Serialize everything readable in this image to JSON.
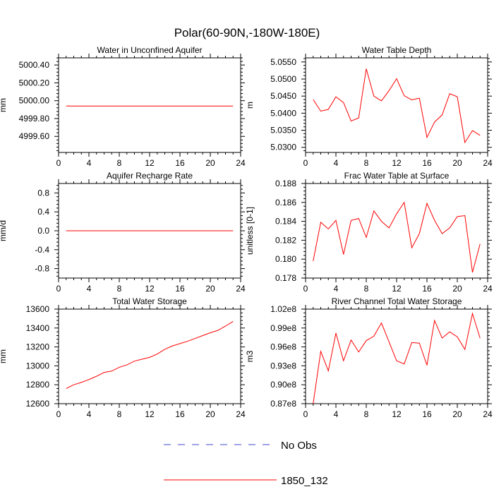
{
  "figure": {
    "title": "Polar(60-90N,-180W-180E)",
    "background": "#ffffff"
  },
  "legend": {
    "placement": "bottom-center",
    "entries": [
      {
        "label": "No Obs",
        "color": "#3f48cc",
        "dash": "dashed"
      },
      {
        "label": "1850_132",
        "color": "#ff0000",
        "dash": "solid"
      }
    ]
  },
  "chart_data": [
    {
      "type": "line",
      "title": "Water in Unconfined Aquifer",
      "xlabel": "",
      "ylabel": "mm",
      "xlim": [
        0,
        24
      ],
      "ylim": [
        4999.42,
        5000.48
      ],
      "xticks": [
        0,
        4,
        8,
        12,
        16,
        20,
        24
      ],
      "xtick_labels": [
        "0",
        "4",
        "8",
        "12",
        "16",
        "20",
        "24"
      ],
      "yticks": [
        4999.6,
        4999.8,
        5000.0,
        5000.2,
        5000.4
      ],
      "ytick_labels": [
        "4999.60",
        "4999.80",
        "5000.00",
        "5000.20",
        "5000.40"
      ],
      "grid": false,
      "series": [
        {
          "name": "1850_132",
          "color": "#ff0000",
          "x": [
            1,
            2,
            3,
            4,
            5,
            6,
            7,
            8,
            9,
            10,
            11,
            12,
            13,
            14,
            15,
            16,
            17,
            18,
            19,
            20,
            21,
            22,
            23
          ],
          "y": [
            4999.94,
            4999.94,
            4999.94,
            4999.94,
            4999.94,
            4999.94,
            4999.94,
            4999.94,
            4999.94,
            4999.94,
            4999.94,
            4999.94,
            4999.94,
            4999.94,
            4999.94,
            4999.94,
            4999.94,
            4999.94,
            4999.94,
            4999.94,
            4999.94,
            4999.94,
            4999.94
          ]
        }
      ]
    },
    {
      "type": "line",
      "title": "Water Table Depth",
      "xlabel": "",
      "ylabel": "m",
      "xlim": [
        0,
        24
      ],
      "ylim": [
        5.0285,
        5.0562
      ],
      "xticks": [
        0,
        4,
        8,
        12,
        16,
        20,
        24
      ],
      "xtick_labels": [
        "0",
        "4",
        "8",
        "12",
        "16",
        "20",
        "24"
      ],
      "yticks": [
        5.03,
        5.035,
        5.04,
        5.045,
        5.05,
        5.055
      ],
      "ytick_labels": [
        "5.0300",
        "5.0350",
        "5.0400",
        "5.0450",
        "5.0500",
        "5.0550"
      ],
      "grid": false,
      "series": [
        {
          "name": "1850_132",
          "color": "#ff0000",
          "x": [
            1,
            2,
            3,
            4,
            5,
            6,
            7,
            8,
            9,
            10,
            11,
            12,
            13,
            14,
            15,
            16,
            17,
            18,
            19,
            20,
            21,
            22,
            23
          ],
          "y": [
            5.044,
            5.0406,
            5.0411,
            5.0448,
            5.0431,
            5.0377,
            5.0386,
            5.053,
            5.045,
            5.0436,
            5.0466,
            5.0501,
            5.0451,
            5.0439,
            5.0444,
            5.0329,
            5.0374,
            5.0395,
            5.0457,
            5.0448,
            5.0314,
            5.0349,
            5.0335
          ]
        }
      ]
    },
    {
      "type": "line",
      "title": "Aquifer Recharge Rate",
      "xlabel": "",
      "ylabel": "mm/d",
      "xlim": [
        0,
        24
      ],
      "ylim": [
        -1.0,
        1.0
      ],
      "xticks": [
        0,
        4,
        8,
        12,
        16,
        20,
        24
      ],
      "xtick_labels": [
        "0",
        "4",
        "8",
        "12",
        "16",
        "20",
        "24"
      ],
      "yticks": [
        -0.8,
        -0.4,
        0.0,
        0.4,
        0.8
      ],
      "ytick_labels": [
        "-0.8",
        "-0.4",
        "0.0",
        "0.4",
        "0.8"
      ],
      "grid": false,
      "series": [
        {
          "name": "1850_132",
          "color": "#ff0000",
          "x": [
            1,
            2,
            3,
            4,
            5,
            6,
            7,
            8,
            9,
            10,
            11,
            12,
            13,
            14,
            15,
            16,
            17,
            18,
            19,
            20,
            21,
            22,
            23
          ],
          "y": [
            0,
            0,
            0,
            0,
            0,
            0,
            0,
            0,
            0,
            0,
            0,
            0,
            0,
            0,
            0,
            0,
            0,
            0,
            0,
            0,
            0,
            0,
            0
          ]
        }
      ]
    },
    {
      "type": "line",
      "title": "Frac Water Table at Surface",
      "xlabel": "",
      "ylabel": "unitless [0-1]",
      "xlim": [
        0,
        24
      ],
      "ylim": [
        0.178,
        0.188
      ],
      "xticks": [
        0,
        4,
        8,
        12,
        16,
        20,
        24
      ],
      "xtick_labels": [
        "0",
        "4",
        "8",
        "12",
        "16",
        "20",
        "24"
      ],
      "yticks": [
        0.178,
        0.18,
        0.182,
        0.184,
        0.186,
        0.188
      ],
      "ytick_labels": [
        "0.178",
        "0.180",
        "0.182",
        "0.184",
        "0.186",
        "0.188"
      ],
      "grid": false,
      "series": [
        {
          "name": "1850_132",
          "color": "#ff0000",
          "x": [
            1,
            2,
            3,
            4,
            5,
            6,
            7,
            8,
            9,
            10,
            11,
            12,
            13,
            14,
            15,
            16,
            17,
            18,
            19,
            20,
            21,
            22,
            23
          ],
          "y": [
            0.1798,
            0.1839,
            0.1832,
            0.1841,
            0.1805,
            0.1841,
            0.1843,
            0.1823,
            0.1851,
            0.184,
            0.1833,
            0.1848,
            0.186,
            0.1812,
            0.1827,
            0.1859,
            0.1841,
            0.1827,
            0.1833,
            0.1845,
            0.1846,
            0.1786,
            0.1816
          ]
        }
      ]
    },
    {
      "type": "line",
      "title": "Total Water Storage",
      "xlabel": "",
      "ylabel": "mm",
      "xlim": [
        0,
        24
      ],
      "ylim": [
        12600,
        13600
      ],
      "xticks": [
        0,
        4,
        8,
        12,
        16,
        20,
        24
      ],
      "xtick_labels": [
        "0",
        "4",
        "8",
        "12",
        "16",
        "20",
        "24"
      ],
      "yticks": [
        12600,
        12800,
        13000,
        13200,
        13400,
        13600
      ],
      "ytick_labels": [
        "12600",
        "12800",
        "13000",
        "13200",
        "13400",
        "13600"
      ],
      "grid": false,
      "series": [
        {
          "name": "1850_132",
          "color": "#ff0000",
          "x": [
            1,
            2,
            3,
            4,
            5,
            6,
            7,
            8,
            9,
            10,
            11,
            12,
            13,
            14,
            15,
            16,
            17,
            18,
            19,
            20,
            21,
            22,
            23
          ],
          "y": [
            12760,
            12800,
            12825,
            12855,
            12890,
            12930,
            12945,
            12985,
            13010,
            13050,
            13070,
            13090,
            13125,
            13175,
            13210,
            13235,
            13260,
            13290,
            13320,
            13350,
            13375,
            13420,
            13470
          ]
        }
      ]
    },
    {
      "type": "line",
      "title": "River Channel Total Water Storage",
      "xlabel": "",
      "ylabel": "m3",
      "xlim": [
        0,
        24
      ],
      "ylim": [
        87000000.0,
        102000000.0
      ],
      "xticks": [
        0,
        4,
        8,
        12,
        16,
        20,
        24
      ],
      "xtick_labels": [
        "0",
        "4",
        "8",
        "12",
        "16",
        "20",
        "24"
      ],
      "yticks": [
        87000000.0,
        90000000.0,
        93000000.0,
        96000000.0,
        99000000.0,
        102000000.0
      ],
      "ytick_labels": [
        "0.87e8",
        "0.90e8",
        "0.93e8",
        "0.96e8",
        "0.99e8",
        "1.02e8"
      ],
      "grid": false,
      "series": [
        {
          "name": "1850_132",
          "color": "#ff0000",
          "x": [
            1,
            2,
            3,
            4,
            5,
            6,
            7,
            8,
            9,
            10,
            11,
            12,
            13,
            14,
            15,
            16,
            17,
            18,
            19,
            20,
            21,
            22,
            23
          ],
          "y": [
            87000000.0,
            95300000.0,
            92200000.0,
            98200000.0,
            93800000.0,
            97100000.0,
            95200000.0,
            97000000.0,
            97700000.0,
            99800000.0,
            96800000.0,
            93800000.0,
            93300000.0,
            96700000.0,
            96600000.0,
            93100000.0,
            100200000.0,
            97400000.0,
            98400000.0,
            97600000.0,
            95600000.0,
            101300000.0,
            97400000.0
          ]
        }
      ]
    }
  ]
}
